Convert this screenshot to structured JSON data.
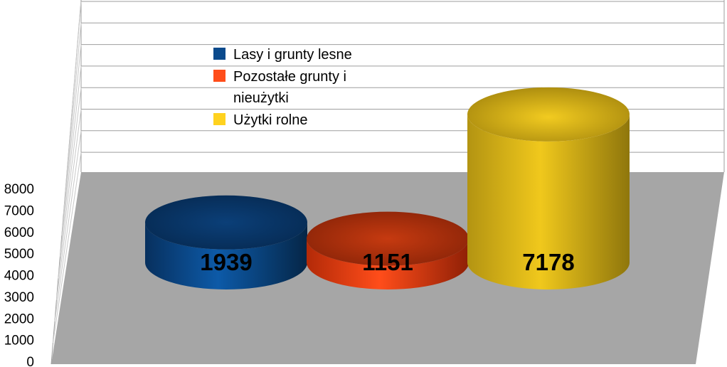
{
  "chart_data": {
    "type": "bar",
    "style": "3d-cylinder",
    "categories": [
      "Lasy i grunty lesne",
      "Pozostałe grunty i nieużytki",
      "Użytki rolne"
    ],
    "values": [
      1939,
      1151,
      7178
    ],
    "data_labels": [
      "1939",
      "1151",
      "7178"
    ],
    "ylim": [
      0,
      8000
    ],
    "yticks": [
      "0",
      "1000",
      "2000",
      "3000",
      "4000",
      "5000",
      "6000",
      "7000",
      "8000"
    ],
    "grid": true,
    "legend_position": "top-left",
    "legend": [
      {
        "lines": [
          "Lasy i grunty lesne"
        ],
        "color": "#0a4a8c"
      },
      {
        "lines": [
          "Pozostałe grunty i",
          "nieużytki"
        ],
        "color": "#ff4d1a"
      },
      {
        "lines": [
          "Użytki rolne"
        ],
        "color": "#ffd21f"
      }
    ],
    "colors": {
      "floor": "#a6a6a6",
      "gridlines": "#9e9e9e",
      "series": [
        "#0a4a8c",
        "#ff4d1a",
        "#ffd21f"
      ]
    }
  }
}
